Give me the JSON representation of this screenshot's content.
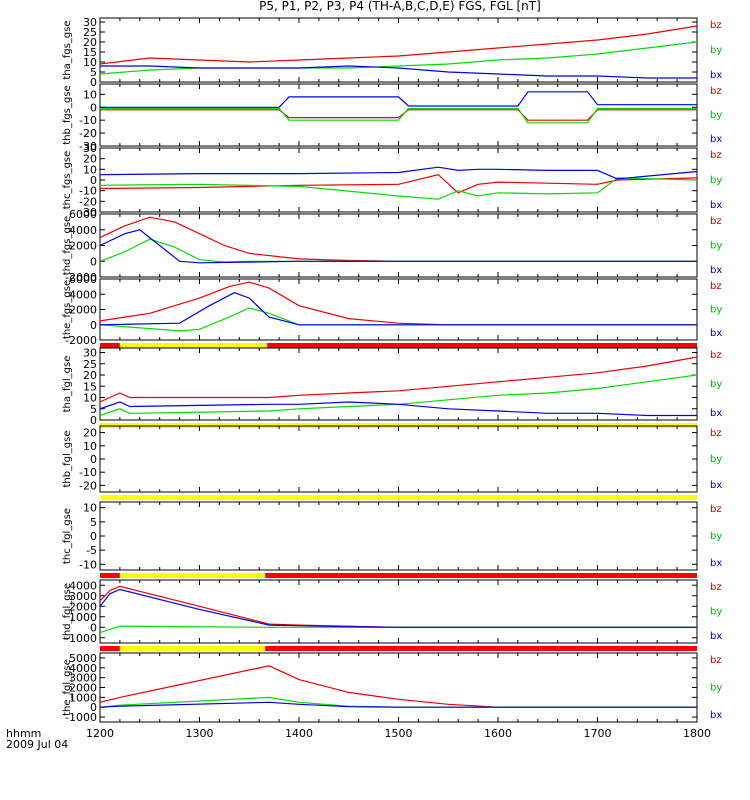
{
  "title": "P5, P1, P2, P3, P4 (TH-A,B,C,D,E) FGS, FGL [nT]",
  "time_label": "hhmm",
  "date_label": "2009 Jul 04",
  "x_ticks": [
    1200,
    1300,
    1400,
    1500,
    1600,
    1700,
    1800
  ],
  "legend": [
    {
      "label": "bz",
      "color": "#cc0000"
    },
    {
      "label": "by",
      "color": "#00bb00"
    },
    {
      "label": "bx",
      "color": "#0000cc"
    }
  ],
  "colors": {
    "bz": "#ee0000",
    "by": "#00dd00",
    "bx": "#0000ee",
    "bar_red": "#ff0000",
    "bar_yellow": "#ffff00"
  },
  "chart_data": [
    {
      "type": "line",
      "ylabel": "tha_fgs_gse",
      "ylim": [
        0,
        32
      ],
      "y_ticks": [
        0,
        5,
        10,
        15,
        20,
        25,
        30
      ],
      "series": [
        {
          "name": "bz",
          "x": [
            1200,
            1250,
            1300,
            1350,
            1400,
            1450,
            1500,
            1550,
            1600,
            1650,
            1700,
            1750,
            1800
          ],
          "y": [
            9,
            12,
            11,
            10,
            11,
            12,
            13,
            15,
            17,
            19,
            21,
            24,
            28
          ]
        },
        {
          "name": "by",
          "x": [
            1200,
            1250,
            1300,
            1350,
            1400,
            1450,
            1500,
            1550,
            1600,
            1650,
            1700,
            1750,
            1800
          ],
          "y": [
            4,
            6,
            7,
            7,
            7,
            7,
            8,
            9,
            11,
            12,
            14,
            17,
            20
          ]
        },
        {
          "name": "bx",
          "x": [
            1200,
            1250,
            1300,
            1350,
            1400,
            1450,
            1500,
            1550,
            1600,
            1650,
            1700,
            1750,
            1800
          ],
          "y": [
            8,
            8,
            7,
            7,
            7,
            8,
            7,
            5,
            4,
            3,
            3,
            2,
            2
          ]
        }
      ],
      "status_bar": []
    },
    {
      "type": "line",
      "ylabel": "thb_fgs_gse",
      "ylim": [
        -30,
        18
      ],
      "y_ticks": [
        -30,
        -20,
        -10,
        0,
        10
      ],
      "series": [
        {
          "name": "bz",
          "x": [
            1200,
            1380,
            1390,
            1500,
            1510,
            1620,
            1630,
            1690,
            1700,
            1800
          ],
          "y": [
            -2,
            -2,
            -8,
            -8,
            -2,
            -2,
            -10,
            -10,
            -2,
            -2
          ]
        },
        {
          "name": "by",
          "x": [
            1200,
            1380,
            1390,
            1500,
            1510,
            1620,
            1630,
            1690,
            1700,
            1800
          ],
          "y": [
            -1,
            -1,
            -10,
            -10,
            -1,
            -1,
            -12,
            -12,
            -1,
            -1
          ]
        },
        {
          "name": "bx",
          "x": [
            1200,
            1380,
            1390,
            1500,
            1510,
            1620,
            1630,
            1690,
            1700,
            1800
          ],
          "y": [
            0,
            0,
            8,
            8,
            1,
            1,
            12,
            12,
            2,
            2
          ]
        }
      ],
      "status_bar": []
    },
    {
      "type": "line",
      "ylabel": "thc_fgs_gse",
      "ylim": [
        -30,
        30
      ],
      "y_ticks": [
        -30,
        -20,
        -10,
        0,
        10,
        20,
        30
      ],
      "series": [
        {
          "name": "bz",
          "x": [
            1200,
            1300,
            1400,
            1500,
            1540,
            1560,
            1580,
            1600,
            1650,
            1700,
            1720,
            1800
          ],
          "y": [
            -8,
            -7,
            -5,
            -4,
            5,
            -12,
            -4,
            -2,
            -3,
            -4,
            0,
            2
          ]
        },
        {
          "name": "by",
          "x": [
            1200,
            1300,
            1400,
            1500,
            1540,
            1560,
            1580,
            1600,
            1650,
            1700,
            1720,
            1800
          ],
          "y": [
            -5,
            -4,
            -6,
            -15,
            -18,
            -10,
            -15,
            -12,
            -13,
            -12,
            2,
            0
          ]
        },
        {
          "name": "bx",
          "x": [
            1200,
            1300,
            1400,
            1500,
            1540,
            1560,
            1580,
            1600,
            1650,
            1700,
            1720,
            1800
          ],
          "y": [
            5,
            6,
            6,
            7,
            12,
            9,
            10,
            10,
            9,
            9,
            1,
            8
          ]
        }
      ],
      "status_bar": []
    },
    {
      "type": "line",
      "ylabel": "thd_fgs_gse",
      "ylim": [
        -2000,
        6000
      ],
      "y_ticks": [
        -2000,
        0,
        2000,
        4000,
        6000
      ],
      "series": [
        {
          "name": "bz",
          "x": [
            1200,
            1225,
            1250,
            1275,
            1300,
            1325,
            1350,
            1400,
            1450,
            1500,
            1800
          ],
          "y": [
            3000,
            4500,
            5600,
            5000,
            3500,
            2000,
            1000,
            300,
            100,
            0,
            0
          ]
        },
        {
          "name": "by",
          "x": [
            1200,
            1225,
            1250,
            1275,
            1300,
            1325,
            1350,
            1400,
            1800
          ],
          "y": [
            0,
            1200,
            2800,
            1800,
            200,
            -100,
            0,
            0,
            0
          ]
        },
        {
          "name": "bx",
          "x": [
            1200,
            1225,
            1240,
            1260,
            1280,
            1300,
            1400,
            1800
          ],
          "y": [
            2000,
            3500,
            4000,
            2000,
            0,
            -200,
            0,
            0
          ]
        }
      ],
      "status_bar": []
    },
    {
      "type": "line",
      "ylabel": "the_fgs_gse",
      "ylim": [
        -2000,
        6000
      ],
      "y_ticks": [
        -2000,
        0,
        2000,
        4000,
        6000
      ],
      "series": [
        {
          "name": "bz",
          "x": [
            1200,
            1250,
            1300,
            1330,
            1350,
            1370,
            1400,
            1450,
            1500,
            1550,
            1800
          ],
          "y": [
            500,
            1500,
            3500,
            5000,
            5600,
            4800,
            2500,
            800,
            200,
            0,
            0
          ]
        },
        {
          "name": "by",
          "x": [
            1200,
            1280,
            1300,
            1330,
            1350,
            1370,
            1400,
            1800
          ],
          "y": [
            0,
            -800,
            -600,
            1000,
            2200,
            1500,
            0,
            0
          ]
        },
        {
          "name": "bx",
          "x": [
            1200,
            1280,
            1310,
            1335,
            1350,
            1370,
            1400,
            1800
          ],
          "y": [
            0,
            200,
            2500,
            4200,
            3500,
            1000,
            0,
            0
          ]
        }
      ],
      "status_bar": [
        {
          "start": 1200,
          "end": 1220,
          "color": "red"
        },
        {
          "start": 1220,
          "end": 1368,
          "color": "yellow"
        },
        {
          "start": 1368,
          "end": 1800,
          "color": "red"
        }
      ]
    },
    {
      "type": "line",
      "ylabel": "tha_fgl_gse",
      "ylim": [
        0,
        32
      ],
      "y_ticks": [
        0,
        5,
        10,
        15,
        20,
        25,
        30
      ],
      "series": [
        {
          "name": "bz",
          "x": [
            1200,
            1220,
            1230,
            1370,
            1400,
            1450,
            1500,
            1550,
            1600,
            1650,
            1700,
            1750,
            1800
          ],
          "y": [
            8,
            12,
            10,
            10,
            11,
            12,
            13,
            15,
            17,
            19,
            21,
            24,
            28
          ]
        },
        {
          "name": "by",
          "x": [
            1200,
            1220,
            1230,
            1370,
            1400,
            1450,
            1500,
            1550,
            1600,
            1650,
            1700,
            1750,
            1800
          ],
          "y": [
            2,
            5,
            3,
            4,
            5,
            6,
            7,
            9,
            11,
            12,
            14,
            17,
            20
          ]
        },
        {
          "name": "bx",
          "x": [
            1200,
            1220,
            1230,
            1370,
            1400,
            1450,
            1500,
            1550,
            1600,
            1650,
            1700,
            1750,
            1800
          ],
          "y": [
            5,
            8,
            6,
            7,
            7,
            8,
            7,
            5,
            4,
            3,
            3,
            2,
            2
          ]
        }
      ],
      "status_bar": [
        {
          "start": 1200,
          "end": 1800,
          "color": "yellow"
        }
      ]
    },
    {
      "type": "line",
      "ylabel": "thb_fgl_gse",
      "ylim": [
        -25,
        25
      ],
      "y_ticks": [
        -20,
        -10,
        0,
        10,
        20
      ],
      "series": [],
      "status_bar": [
        {
          "start": 1200,
          "end": 1800,
          "color": "yellow"
        }
      ]
    },
    {
      "type": "line",
      "ylabel": "thc_fgl_gse",
      "ylim": [
        -12,
        12
      ],
      "y_ticks": [
        -10,
        -5,
        0,
        5,
        10
      ],
      "series": [],
      "status_bar": [
        {
          "start": 1200,
          "end": 1220,
          "color": "red"
        },
        {
          "start": 1220,
          "end": 1366,
          "color": "yellow"
        },
        {
          "start": 1366,
          "end": 1800,
          "color": "red"
        }
      ]
    },
    {
      "type": "line",
      "ylabel": "thd_fgl_gse",
      "ylim": [
        -1500,
        4500
      ],
      "y_ticks": [
        -1000,
        0,
        1000,
        2000,
        3000,
        4000
      ],
      "series": [
        {
          "name": "bz",
          "x": [
            1200,
            1210,
            1220,
            1300,
            1370,
            1400,
            1450,
            1500,
            1550,
            1800
          ],
          "y": [
            2500,
            3500,
            3900,
            2000,
            300,
            200,
            100,
            0,
            0,
            0
          ]
        },
        {
          "name": "by",
          "x": [
            1200,
            1210,
            1220,
            1370,
            1400,
            1800
          ],
          "y": [
            -500,
            -200,
            100,
            0,
            0,
            0
          ]
        },
        {
          "name": "bx",
          "x": [
            1200,
            1210,
            1220,
            1300,
            1370,
            1400,
            1450,
            1500,
            1550,
            1800
          ],
          "y": [
            2000,
            3200,
            3600,
            1700,
            200,
            150,
            50,
            0,
            0,
            0
          ]
        }
      ],
      "status_bar": [
        {
          "start": 1200,
          "end": 1220,
          "color": "red"
        },
        {
          "start": 1220,
          "end": 1366,
          "color": "yellow"
        },
        {
          "start": 1366,
          "end": 1800,
          "color": "red"
        }
      ]
    },
    {
      "type": "line",
      "ylabel": "the_fgl_gse",
      "ylim": [
        -1500,
        5500
      ],
      "y_ticks": [
        -1000,
        0,
        1000,
        2000,
        3000,
        4000,
        5000
      ],
      "series": [
        {
          "name": "bz",
          "x": [
            1200,
            1220,
            1370,
            1400,
            1450,
            1500,
            1550,
            1600,
            1650,
            1800
          ],
          "y": [
            500,
            1000,
            4200,
            2800,
            1500,
            800,
            300,
            0,
            0,
            0
          ]
        },
        {
          "name": "by",
          "x": [
            1200,
            1220,
            1370,
            1400,
            1450,
            1500,
            1800
          ],
          "y": [
            0,
            200,
            1000,
            500,
            100,
            0,
            0
          ]
        },
        {
          "name": "bx",
          "x": [
            1200,
            1220,
            1370,
            1400,
            1450,
            1500,
            1800
          ],
          "y": [
            0,
            100,
            500,
            300,
            50,
            0,
            0
          ]
        }
      ],
      "status_bar": []
    }
  ]
}
